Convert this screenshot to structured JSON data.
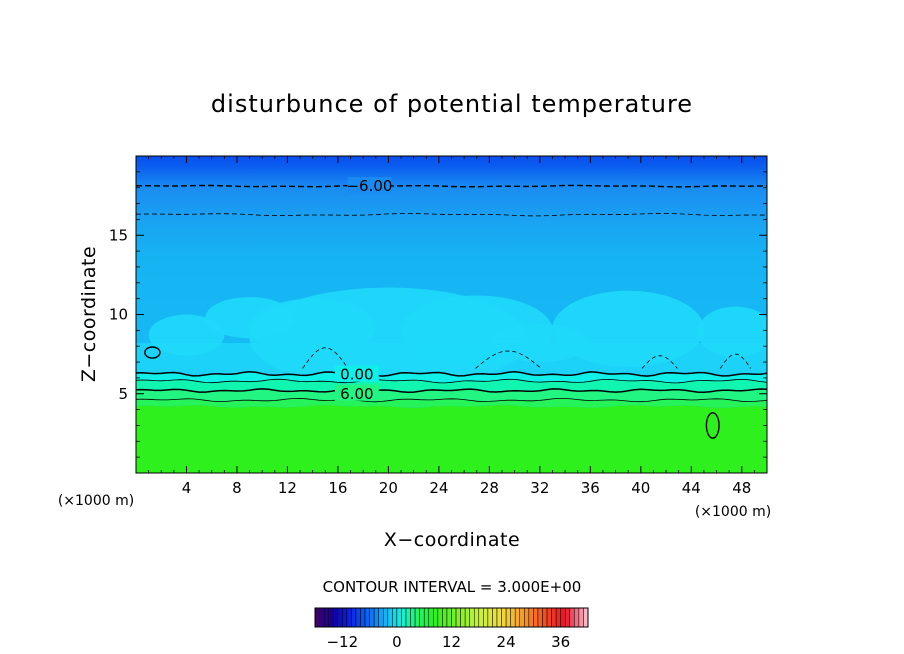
{
  "chart_data": {
    "type": "heatmap",
    "title": "disturbunce of potential temperature",
    "xlabel": "X−coordinate",
    "ylabel": "Z−coordinate",
    "x_unit": "(×1000 m)",
    "z_unit": "(×1000 m)",
    "xlim": [
      0,
      50
    ],
    "ylim": [
      0,
      20
    ],
    "x_ticks": [
      4,
      8,
      12,
      16,
      20,
      24,
      28,
      32,
      36,
      40,
      44,
      48
    ],
    "y_ticks": [
      5,
      10,
      15
    ],
    "x_tick_labels": [
      "4",
      "8",
      "12",
      "16",
      "20",
      "24",
      "28",
      "32",
      "36",
      "40",
      "44",
      "48"
    ],
    "y_tick_labels": [
      "5",
      "10",
      "15"
    ],
    "contour_interval_text": "CONTOUR INTERVAL = 3.000E+00",
    "contour_labels": [
      {
        "text": "−6.00",
        "x": 18.5,
        "z": 18.1
      },
      {
        "text": "0.00",
        "x": 17.5,
        "z": 6.2
      },
      {
        "text": "6.00",
        "x": 17.5,
        "z": 5.0
      }
    ],
    "colorbar": {
      "range": [
        -18,
        42
      ],
      "tick_values": [
        -12,
        0,
        12,
        24,
        36
      ],
      "tick_labels": [
        "−12",
        "0",
        "12",
        "24",
        "36"
      ]
    },
    "colors": {
      "upper_blue": "#0a55f0",
      "mid_blue": "#1e98f2",
      "sky_blue": "#15b5f3",
      "light_cyan": "#1fd9f9",
      "cyan_band": "#0ef0e8",
      "teal_green": "#10f5b0",
      "green_band": "#22f582",
      "surface_green": "#2ef01c"
    }
  }
}
